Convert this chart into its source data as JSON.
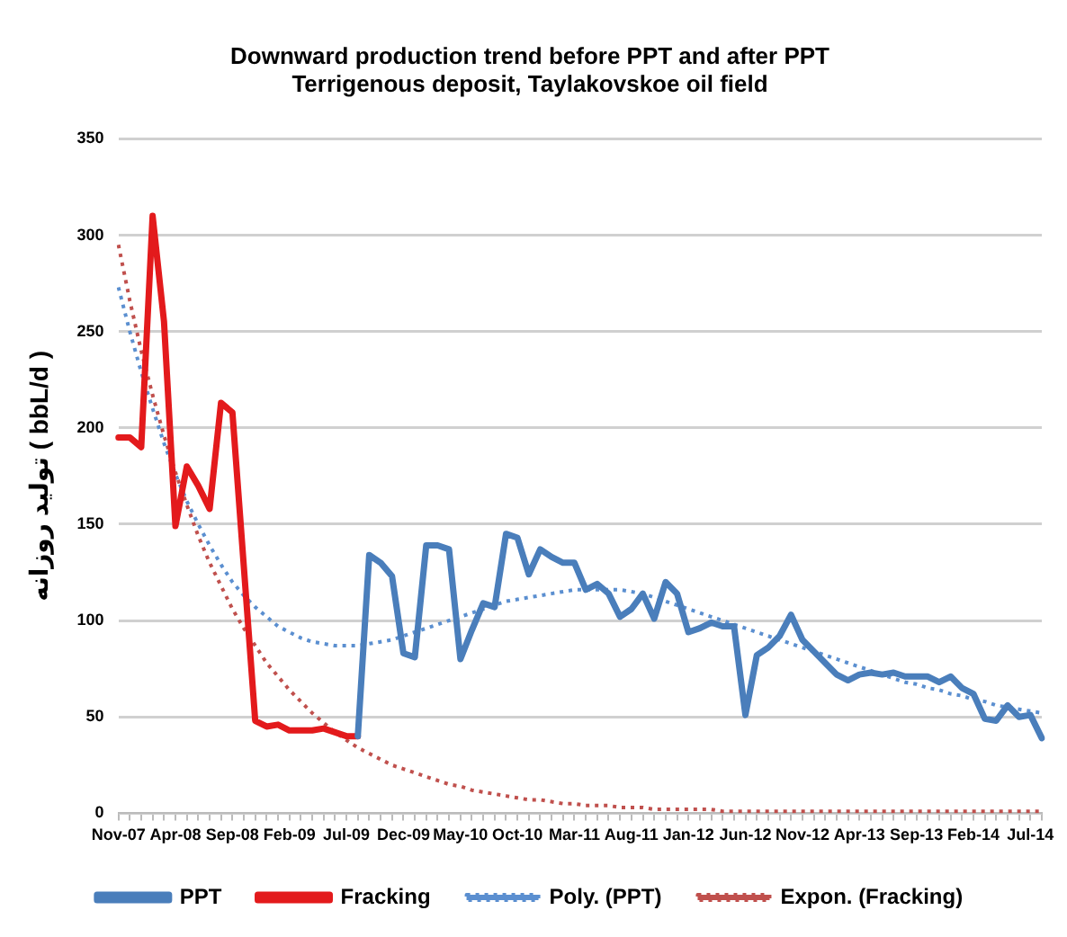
{
  "chart_data": {
    "type": "line",
    "title": [
      "Downward production trend before PPT and after PPT",
      "Terrigenous deposit, Taylakovskoe oil field"
    ],
    "ylabel": "تولید روزانه ( bbL/d )",
    "categories": [
      "Nov-07",
      null,
      null,
      null,
      null,
      "Apr-08",
      null,
      null,
      null,
      null,
      "Sep-08",
      null,
      null,
      null,
      null,
      "Feb-09",
      null,
      null,
      null,
      null,
      "Jul-09",
      null,
      null,
      null,
      null,
      "Dec-09",
      null,
      null,
      null,
      null,
      "May-10",
      null,
      null,
      null,
      null,
      "Oct-10",
      null,
      null,
      null,
      null,
      "Mar-11",
      null,
      null,
      null,
      null,
      "Aug-11",
      null,
      null,
      null,
      null,
      "Jan-12",
      null,
      null,
      null,
      null,
      "Jun-12",
      null,
      null,
      null,
      null,
      "Nov-12",
      null,
      null,
      null,
      null,
      "Apr-13",
      null,
      null,
      null,
      null,
      "Sep-13",
      null,
      null,
      null,
      null,
      "Feb-14",
      null,
      null,
      null,
      null,
      "Jul-14",
      null
    ],
    "series": [
      {
        "name": "PPT",
        "color": "#4a7ebb",
        "values": [
          null,
          null,
          null,
          null,
          null,
          null,
          null,
          null,
          null,
          null,
          null,
          null,
          null,
          null,
          null,
          null,
          null,
          null,
          null,
          null,
          null,
          40,
          134,
          130,
          123,
          83,
          81,
          139,
          139,
          137,
          80,
          95,
          109,
          107,
          145,
          143,
          124,
          137,
          133,
          130,
          130,
          116,
          119,
          114,
          102,
          106,
          114,
          101,
          120,
          114,
          94,
          96,
          99,
          97,
          97,
          51,
          82,
          86,
          92,
          103,
          90,
          84,
          78,
          72,
          69,
          72,
          73,
          72,
          73,
          71,
          71,
          71,
          68,
          71,
          65,
          62,
          49,
          48,
          56,
          50,
          51,
          39
        ]
      },
      {
        "name": "Fracking",
        "color": "#e31a1c",
        "values": [
          195,
          195,
          190,
          310,
          255,
          149,
          180,
          170,
          158,
          213,
          208,
          128,
          48,
          45,
          46,
          43,
          43,
          43,
          44,
          42,
          40,
          40,
          null,
          null,
          null,
          null,
          null,
          null,
          null,
          null,
          null,
          null,
          null,
          null,
          null,
          null,
          null,
          null,
          null,
          null,
          null,
          null,
          null,
          null,
          null,
          null,
          null,
          null,
          null,
          null,
          null,
          null,
          null,
          null,
          null,
          null,
          null,
          null,
          null,
          null,
          null,
          null,
          null,
          null,
          null,
          null,
          null,
          null,
          null,
          null,
          null,
          null,
          null,
          null,
          null,
          null,
          null,
          null,
          null,
          null,
          null,
          null
        ]
      },
      {
        "name": "Poly. (PPT)",
        "color": "#5b8fd0",
        "line_style": "dotted",
        "values": [
          273,
          250,
          229,
          210,
          192,
          176,
          162,
          150,
          139,
          129,
          120,
          113,
          107,
          102,
          97,
          94,
          91,
          89,
          88,
          87,
          87,
          87,
          88,
          89,
          90,
          92,
          94,
          96,
          98,
          100,
          102,
          104,
          106,
          108,
          110,
          111,
          112,
          113,
          114,
          115,
          116,
          116,
          116,
          116,
          116,
          115,
          114,
          112,
          110,
          108,
          106,
          104,
          102,
          100,
          98,
          96,
          94,
          92,
          90,
          88,
          86,
          84,
          82,
          80,
          78,
          76,
          74,
          72,
          70,
          68,
          67,
          65,
          64,
          62,
          61,
          59,
          58,
          56,
          55,
          54,
          53,
          52
        ]
      },
      {
        "name": "Expon. (Fracking)",
        "color": "#c0504d",
        "line_style": "dotted",
        "values": [
          295,
          266,
          240,
          217,
          196,
          177,
          160,
          144,
          130,
          118,
          106,
          96,
          87,
          78,
          71,
          64,
          58,
          52,
          47,
          42,
          38,
          34,
          31,
          28,
          25,
          23,
          21,
          19,
          17,
          15,
          14,
          12,
          11,
          10,
          9,
          8,
          7,
          7,
          6,
          5,
          5,
          4,
          4,
          4,
          3,
          3,
          3,
          2,
          2,
          2,
          2,
          2,
          2,
          1,
          1,
          1,
          1,
          1,
          1,
          1,
          1,
          1,
          1,
          1,
          1,
          1,
          1,
          1,
          1,
          1,
          1,
          1,
          1,
          1,
          1,
          1,
          1,
          1,
          1,
          1,
          1,
          1
        ]
      }
    ],
    "ylim": [
      0,
      350
    ],
    "yticks": [
      0,
      50,
      100,
      150,
      200,
      250,
      300,
      350
    ],
    "grid": "y",
    "legend": "bottom",
    "marker": "none",
    "line_style": "solid"
  }
}
